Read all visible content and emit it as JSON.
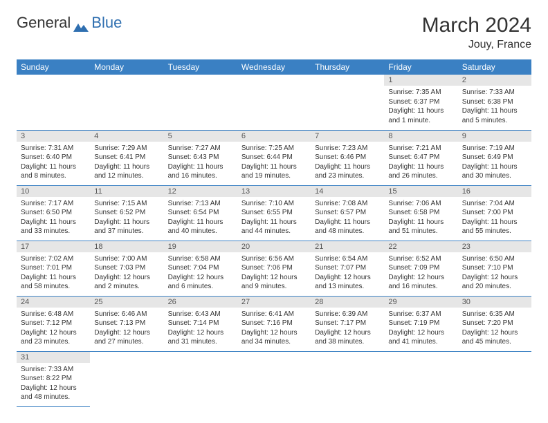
{
  "logo": {
    "part1": "General",
    "part2": "Blue"
  },
  "title": "March 2024",
  "location": "Jouy, France",
  "colors": {
    "header_bg": "#3a80c3",
    "header_text": "#ffffff",
    "daynum_bg": "#e6e6e6",
    "text": "#333333",
    "rule": "#3a80c3"
  },
  "weekdays": [
    "Sunday",
    "Monday",
    "Tuesday",
    "Wednesday",
    "Thursday",
    "Friday",
    "Saturday"
  ],
  "weeks": [
    [
      null,
      null,
      null,
      null,
      null,
      {
        "n": "1",
        "sunrise": "Sunrise: 7:35 AM",
        "sunset": "Sunset: 6:37 PM",
        "daylight": "Daylight: 11 hours and 1 minute."
      },
      {
        "n": "2",
        "sunrise": "Sunrise: 7:33 AM",
        "sunset": "Sunset: 6:38 PM",
        "daylight": "Daylight: 11 hours and 5 minutes."
      }
    ],
    [
      {
        "n": "3",
        "sunrise": "Sunrise: 7:31 AM",
        "sunset": "Sunset: 6:40 PM",
        "daylight": "Daylight: 11 hours and 8 minutes."
      },
      {
        "n": "4",
        "sunrise": "Sunrise: 7:29 AM",
        "sunset": "Sunset: 6:41 PM",
        "daylight": "Daylight: 11 hours and 12 minutes."
      },
      {
        "n": "5",
        "sunrise": "Sunrise: 7:27 AM",
        "sunset": "Sunset: 6:43 PM",
        "daylight": "Daylight: 11 hours and 16 minutes."
      },
      {
        "n": "6",
        "sunrise": "Sunrise: 7:25 AM",
        "sunset": "Sunset: 6:44 PM",
        "daylight": "Daylight: 11 hours and 19 minutes."
      },
      {
        "n": "7",
        "sunrise": "Sunrise: 7:23 AM",
        "sunset": "Sunset: 6:46 PM",
        "daylight": "Daylight: 11 hours and 23 minutes."
      },
      {
        "n": "8",
        "sunrise": "Sunrise: 7:21 AM",
        "sunset": "Sunset: 6:47 PM",
        "daylight": "Daylight: 11 hours and 26 minutes."
      },
      {
        "n": "9",
        "sunrise": "Sunrise: 7:19 AM",
        "sunset": "Sunset: 6:49 PM",
        "daylight": "Daylight: 11 hours and 30 minutes."
      }
    ],
    [
      {
        "n": "10",
        "sunrise": "Sunrise: 7:17 AM",
        "sunset": "Sunset: 6:50 PM",
        "daylight": "Daylight: 11 hours and 33 minutes."
      },
      {
        "n": "11",
        "sunrise": "Sunrise: 7:15 AM",
        "sunset": "Sunset: 6:52 PM",
        "daylight": "Daylight: 11 hours and 37 minutes."
      },
      {
        "n": "12",
        "sunrise": "Sunrise: 7:13 AM",
        "sunset": "Sunset: 6:54 PM",
        "daylight": "Daylight: 11 hours and 40 minutes."
      },
      {
        "n": "13",
        "sunrise": "Sunrise: 7:10 AM",
        "sunset": "Sunset: 6:55 PM",
        "daylight": "Daylight: 11 hours and 44 minutes."
      },
      {
        "n": "14",
        "sunrise": "Sunrise: 7:08 AM",
        "sunset": "Sunset: 6:57 PM",
        "daylight": "Daylight: 11 hours and 48 minutes."
      },
      {
        "n": "15",
        "sunrise": "Sunrise: 7:06 AM",
        "sunset": "Sunset: 6:58 PM",
        "daylight": "Daylight: 11 hours and 51 minutes."
      },
      {
        "n": "16",
        "sunrise": "Sunrise: 7:04 AM",
        "sunset": "Sunset: 7:00 PM",
        "daylight": "Daylight: 11 hours and 55 minutes."
      }
    ],
    [
      {
        "n": "17",
        "sunrise": "Sunrise: 7:02 AM",
        "sunset": "Sunset: 7:01 PM",
        "daylight": "Daylight: 11 hours and 58 minutes."
      },
      {
        "n": "18",
        "sunrise": "Sunrise: 7:00 AM",
        "sunset": "Sunset: 7:03 PM",
        "daylight": "Daylight: 12 hours and 2 minutes."
      },
      {
        "n": "19",
        "sunrise": "Sunrise: 6:58 AM",
        "sunset": "Sunset: 7:04 PM",
        "daylight": "Daylight: 12 hours and 6 minutes."
      },
      {
        "n": "20",
        "sunrise": "Sunrise: 6:56 AM",
        "sunset": "Sunset: 7:06 PM",
        "daylight": "Daylight: 12 hours and 9 minutes."
      },
      {
        "n": "21",
        "sunrise": "Sunrise: 6:54 AM",
        "sunset": "Sunset: 7:07 PM",
        "daylight": "Daylight: 12 hours and 13 minutes."
      },
      {
        "n": "22",
        "sunrise": "Sunrise: 6:52 AM",
        "sunset": "Sunset: 7:09 PM",
        "daylight": "Daylight: 12 hours and 16 minutes."
      },
      {
        "n": "23",
        "sunrise": "Sunrise: 6:50 AM",
        "sunset": "Sunset: 7:10 PM",
        "daylight": "Daylight: 12 hours and 20 minutes."
      }
    ],
    [
      {
        "n": "24",
        "sunrise": "Sunrise: 6:48 AM",
        "sunset": "Sunset: 7:12 PM",
        "daylight": "Daylight: 12 hours and 23 minutes."
      },
      {
        "n": "25",
        "sunrise": "Sunrise: 6:46 AM",
        "sunset": "Sunset: 7:13 PM",
        "daylight": "Daylight: 12 hours and 27 minutes."
      },
      {
        "n": "26",
        "sunrise": "Sunrise: 6:43 AM",
        "sunset": "Sunset: 7:14 PM",
        "daylight": "Daylight: 12 hours and 31 minutes."
      },
      {
        "n": "27",
        "sunrise": "Sunrise: 6:41 AM",
        "sunset": "Sunset: 7:16 PM",
        "daylight": "Daylight: 12 hours and 34 minutes."
      },
      {
        "n": "28",
        "sunrise": "Sunrise: 6:39 AM",
        "sunset": "Sunset: 7:17 PM",
        "daylight": "Daylight: 12 hours and 38 minutes."
      },
      {
        "n": "29",
        "sunrise": "Sunrise: 6:37 AM",
        "sunset": "Sunset: 7:19 PM",
        "daylight": "Daylight: 12 hours and 41 minutes."
      },
      {
        "n": "30",
        "sunrise": "Sunrise: 6:35 AM",
        "sunset": "Sunset: 7:20 PM",
        "daylight": "Daylight: 12 hours and 45 minutes."
      }
    ],
    [
      {
        "n": "31",
        "sunrise": "Sunrise: 7:33 AM",
        "sunset": "Sunset: 8:22 PM",
        "daylight": "Daylight: 12 hours and 48 minutes."
      },
      null,
      null,
      null,
      null,
      null,
      null
    ]
  ]
}
